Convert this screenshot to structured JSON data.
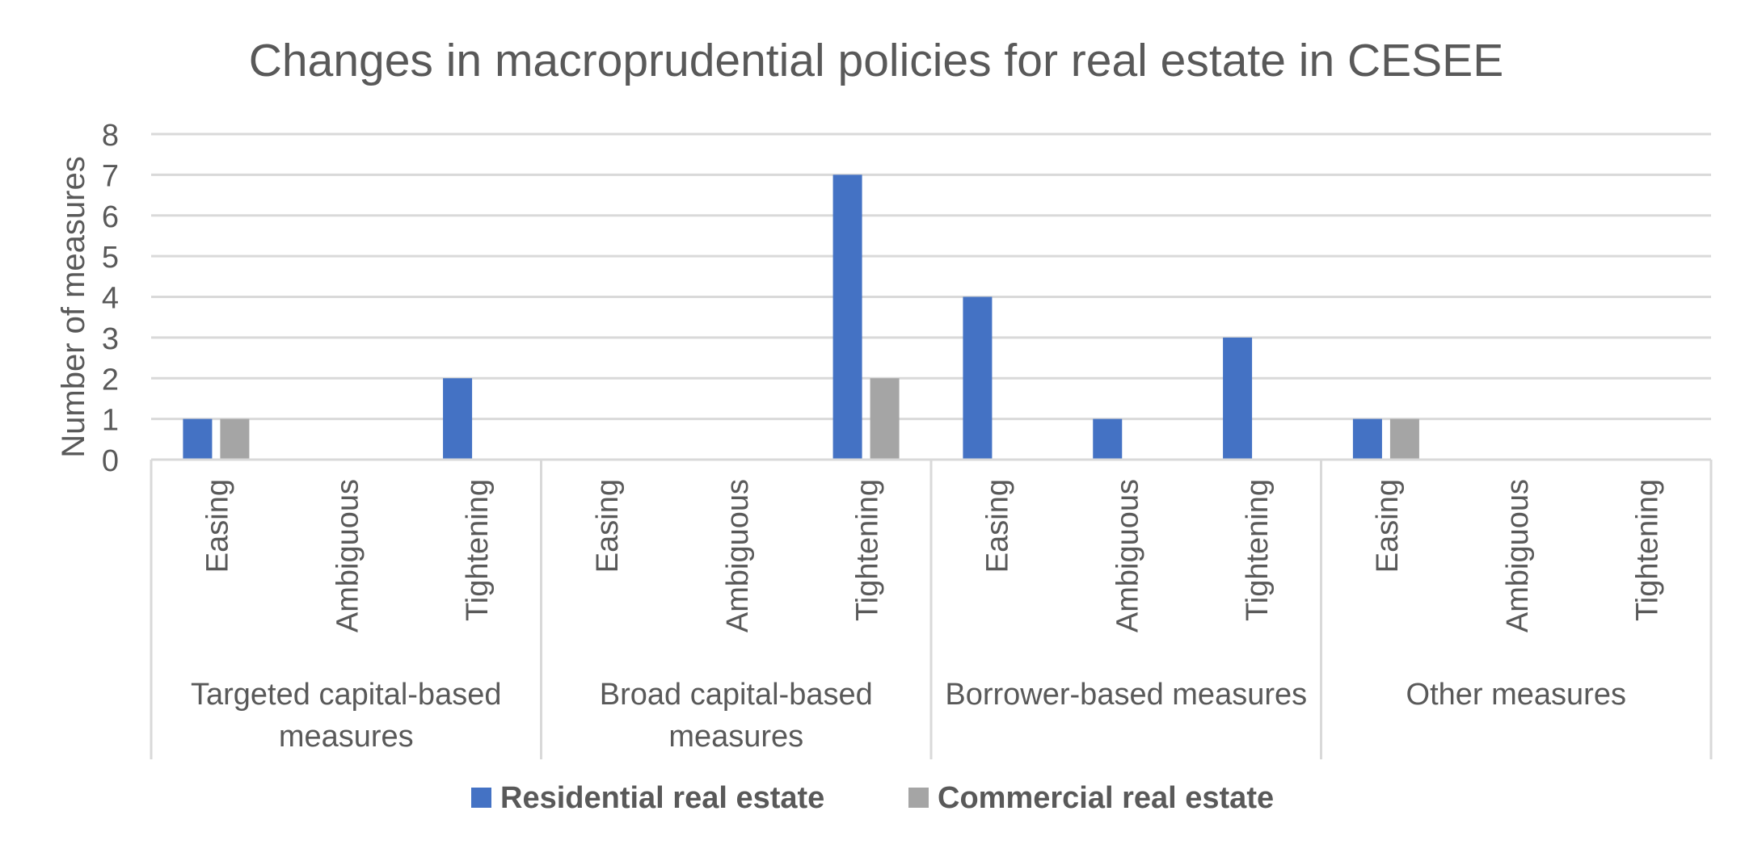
{
  "chart_data": {
    "type": "bar",
    "title": "Changes in macroprudential policies for real estate in CESEE",
    "ylabel": "Number of measures",
    "xlabel": "",
    "ylim": [
      0,
      8
    ],
    "yticks": [
      "0",
      "1",
      "2",
      "3",
      "4",
      "5",
      "6",
      "7",
      "8"
    ],
    "grid": true,
    "legend_position": "bottom",
    "groups": [
      {
        "name": "Targeted capital-based measures",
        "lines": [
          "Targeted capital-based",
          "measures"
        ]
      },
      {
        "name": "Broad capital-based measures",
        "lines": [
          "Broad capital-based",
          "measures"
        ]
      },
      {
        "name": "Borrower-based measures",
        "lines": [
          "Borrower-based measures"
        ]
      },
      {
        "name": "Other measures",
        "lines": [
          "Other measures"
        ]
      }
    ],
    "categories": [
      "Easing",
      "Ambiguous",
      "Tightening",
      "Easing",
      "Ambiguous",
      "Tightening",
      "Easing",
      "Ambiguous",
      "Tightening",
      "Easing",
      "Ambiguous",
      "Tightening"
    ],
    "series": [
      {
        "name": "Residential real estate",
        "color": "#4472c4",
        "values": [
          1,
          0,
          2,
          0,
          0,
          7,
          4,
          1,
          3,
          1,
          0,
          0
        ]
      },
      {
        "name": "Commercial real estate",
        "color": "#a5a5a5",
        "values": [
          1,
          0,
          0,
          0,
          0,
          2,
          0,
          0,
          0,
          1,
          0,
          0
        ]
      }
    ]
  }
}
